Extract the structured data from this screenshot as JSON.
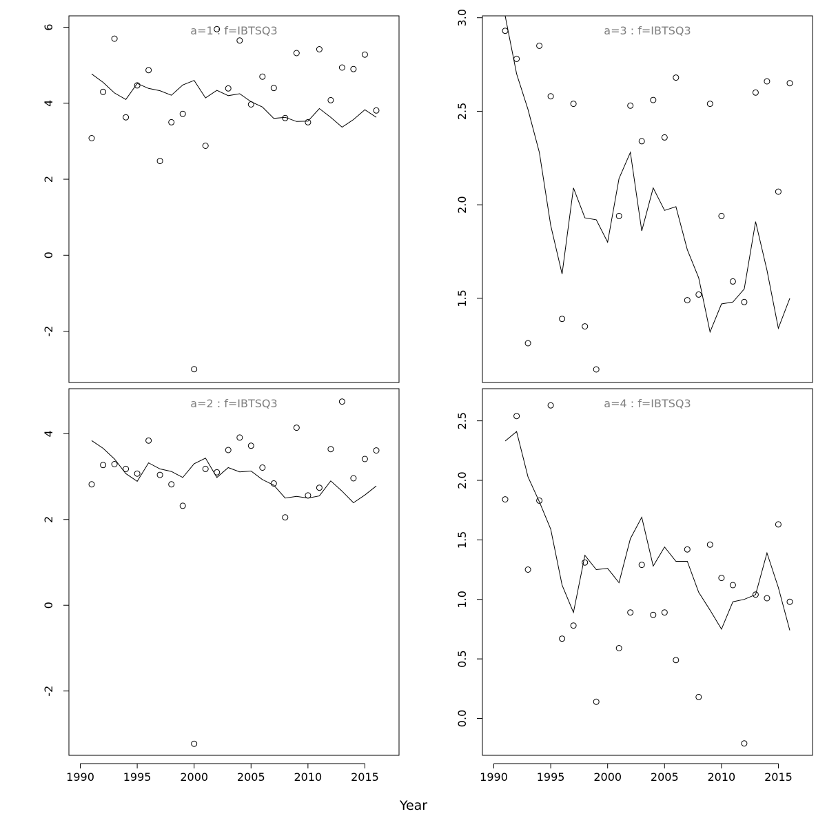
{
  "xlabel": "Year",
  "chart_data": [
    {
      "type": "scatter",
      "title": "a=1  :  f=IBTSQ3",
      "x_ticks": [
        1990,
        1995,
        2000,
        2005,
        2010,
        2015
      ],
      "y_ticks": [
        -2,
        0,
        2,
        4,
        6
      ],
      "xlim": [
        1989,
        2018
      ],
      "ylim": [
        -3.35,
        6.3
      ],
      "show_x_axis": false,
      "series": [
        {
          "kind": "points",
          "x": [
            1991,
            1992,
            1993,
            1994,
            1995,
            1996,
            1997,
            1998,
            1999,
            2000,
            2001,
            2002,
            2003,
            2004,
            2005,
            2006,
            2007,
            2008,
            2009,
            2010,
            2011,
            2012,
            2013,
            2014,
            2015,
            2016
          ],
          "y": [
            3.08,
            4.3,
            5.7,
            3.63,
            4.47,
            4.87,
            2.48,
            3.5,
            3.72,
            -3.0,
            2.88,
            5.95,
            4.39,
            5.65,
            3.97,
            4.7,
            4.4,
            3.61,
            5.32,
            3.5,
            5.42,
            4.08,
            4.94,
            4.9,
            5.28,
            3.81
          ]
        },
        {
          "kind": "line",
          "x": [
            1991,
            1992,
            1993,
            1994,
            1995,
            1996,
            1997,
            1998,
            1999,
            2000,
            2001,
            2002,
            2003,
            2004,
            2005,
            2006,
            2007,
            2008,
            2009,
            2010,
            2011,
            2012,
            2013,
            2014,
            2015,
            2016
          ],
          "y": [
            4.77,
            4.55,
            4.27,
            4.1,
            4.52,
            4.39,
            4.33,
            4.21,
            4.48,
            4.6,
            4.14,
            4.34,
            4.2,
            4.25,
            4.04,
            3.9,
            3.6,
            3.63,
            3.52,
            3.53,
            3.86,
            3.63,
            3.37,
            3.57,
            3.83,
            3.63
          ]
        }
      ]
    },
    {
      "type": "scatter",
      "title": "a=3  :  f=IBTSQ3",
      "x_ticks": [
        1990,
        1995,
        2000,
        2005,
        2010,
        2015
      ],
      "y_ticks": [
        1.5,
        2.0,
        2.5,
        3.0
      ],
      "xlim": [
        1989,
        2018
      ],
      "ylim": [
        1.05,
        3.01
      ],
      "show_x_axis": false,
      "series": [
        {
          "kind": "points",
          "x": [
            1991,
            1992,
            1993,
            1994,
            1995,
            1996,
            1997,
            1998,
            1999,
            2000,
            2001,
            2002,
            2003,
            2004,
            2005,
            2006,
            2007,
            2008,
            2009,
            2010,
            2011,
            2012,
            2013,
            2014,
            2015,
            2016
          ],
          "y": [
            2.93,
            2.78,
            1.26,
            2.85,
            2.58,
            1.39,
            2.54,
            1.35,
            1.12,
            null,
            1.94,
            2.53,
            2.34,
            2.56,
            2.36,
            2.68,
            1.49,
            1.52,
            2.54,
            1.94,
            1.59,
            1.48,
            2.6,
            2.66,
            2.07,
            2.65
          ]
        },
        {
          "kind": "line",
          "x": [
            1991,
            1992,
            1993,
            1994,
            1995,
            1996,
            1997,
            1998,
            1999,
            2000,
            2001,
            2002,
            2003,
            2004,
            2005,
            2006,
            2007,
            2008,
            2009,
            2010,
            2011,
            2012,
            2013,
            2014,
            2015,
            2016
          ],
          "y": [
            3.08,
            2.7,
            2.51,
            2.28,
            1.89,
            1.63,
            2.09,
            1.93,
            1.92,
            1.8,
            2.14,
            2.28,
            1.86,
            2.09,
            1.97,
            1.99,
            1.76,
            1.61,
            1.32,
            1.47,
            1.48,
            1.55,
            1.91,
            1.65,
            1.34,
            1.5
          ]
        }
      ]
    },
    {
      "type": "scatter",
      "title": "a=2  :  f=IBTSQ3",
      "x_ticks": [
        1990,
        1995,
        2000,
        2005,
        2010,
        2015
      ],
      "y_ticks": [
        -2,
        0,
        2,
        4
      ],
      "xlim": [
        1989,
        2018
      ],
      "ylim": [
        -3.5,
        5.05
      ],
      "show_x_axis": true,
      "series": [
        {
          "kind": "points",
          "x": [
            1991,
            1992,
            1993,
            1994,
            1995,
            1996,
            1997,
            1998,
            1999,
            2000,
            2001,
            2002,
            2003,
            2004,
            2005,
            2006,
            2007,
            2008,
            2009,
            2010,
            2011,
            2012,
            2013,
            2014,
            2015,
            2016
          ],
          "y": [
            2.82,
            3.27,
            3.29,
            3.18,
            3.07,
            3.84,
            3.04,
            2.82,
            2.32,
            -3.23,
            3.18,
            3.1,
            3.62,
            3.91,
            3.72,
            3.21,
            2.84,
            2.05,
            4.14,
            2.56,
            2.74,
            3.64,
            4.75,
            2.96,
            3.41,
            3.61
          ]
        },
        {
          "kind": "line",
          "x": [
            1991,
            1992,
            1993,
            1994,
            1995,
            1996,
            1997,
            1998,
            1999,
            2000,
            2001,
            2002,
            2003,
            2004,
            2005,
            2006,
            2007,
            2008,
            2009,
            2010,
            2011,
            2012,
            2013,
            2014,
            2015,
            2016
          ],
          "y": [
            3.84,
            3.66,
            3.41,
            3.07,
            2.89,
            3.32,
            3.18,
            3.12,
            2.98,
            3.3,
            3.43,
            2.98,
            3.21,
            3.11,
            3.13,
            2.93,
            2.8,
            2.5,
            2.54,
            2.5,
            2.55,
            2.9,
            2.66,
            2.39,
            2.57,
            2.78
          ]
        }
      ]
    },
    {
      "type": "scatter",
      "title": "a=4  :  f=IBTSQ3",
      "x_ticks": [
        1990,
        1995,
        2000,
        2005,
        2010,
        2015
      ],
      "y_ticks": [
        0.0,
        0.5,
        1.0,
        1.5,
        2.0,
        2.5
      ],
      "xlim": [
        1989,
        2018
      ],
      "ylim": [
        -0.31,
        2.77
      ],
      "show_x_axis": true,
      "series": [
        {
          "kind": "points",
          "x": [
            1991,
            1992,
            1993,
            1994,
            1995,
            1996,
            1997,
            1998,
            1999,
            2000,
            2001,
            2002,
            2003,
            2004,
            2005,
            2006,
            2007,
            2008,
            2009,
            2010,
            2011,
            2012,
            2013,
            2014,
            2015,
            2016
          ],
          "y": [
            1.84,
            2.54,
            1.25,
            1.83,
            2.63,
            0.67,
            0.78,
            1.31,
            0.14,
            null,
            0.59,
            0.89,
            1.29,
            0.87,
            0.89,
            0.49,
            1.42,
            0.18,
            1.46,
            1.18,
            1.12,
            -0.21,
            1.04,
            1.01,
            1.63,
            0.98
          ]
        },
        {
          "kind": "line",
          "x": [
            1991,
            1992,
            1993,
            1994,
            1995,
            1996,
            1997,
            1998,
            1999,
            2000,
            2001,
            2002,
            2003,
            2004,
            2005,
            2006,
            2007,
            2008,
            2009,
            2010,
            2011,
            2012,
            2013,
            2014,
            2015,
            2016
          ],
          "y": [
            2.33,
            2.41,
            2.03,
            1.82,
            1.59,
            1.12,
            0.89,
            1.37,
            1.25,
            1.26,
            1.14,
            1.51,
            1.69,
            1.28,
            1.44,
            1.32,
            1.32,
            1.06,
            0.91,
            0.75,
            0.98,
            1.0,
            1.04,
            1.39,
            1.1,
            0.74
          ]
        }
      ]
    }
  ]
}
